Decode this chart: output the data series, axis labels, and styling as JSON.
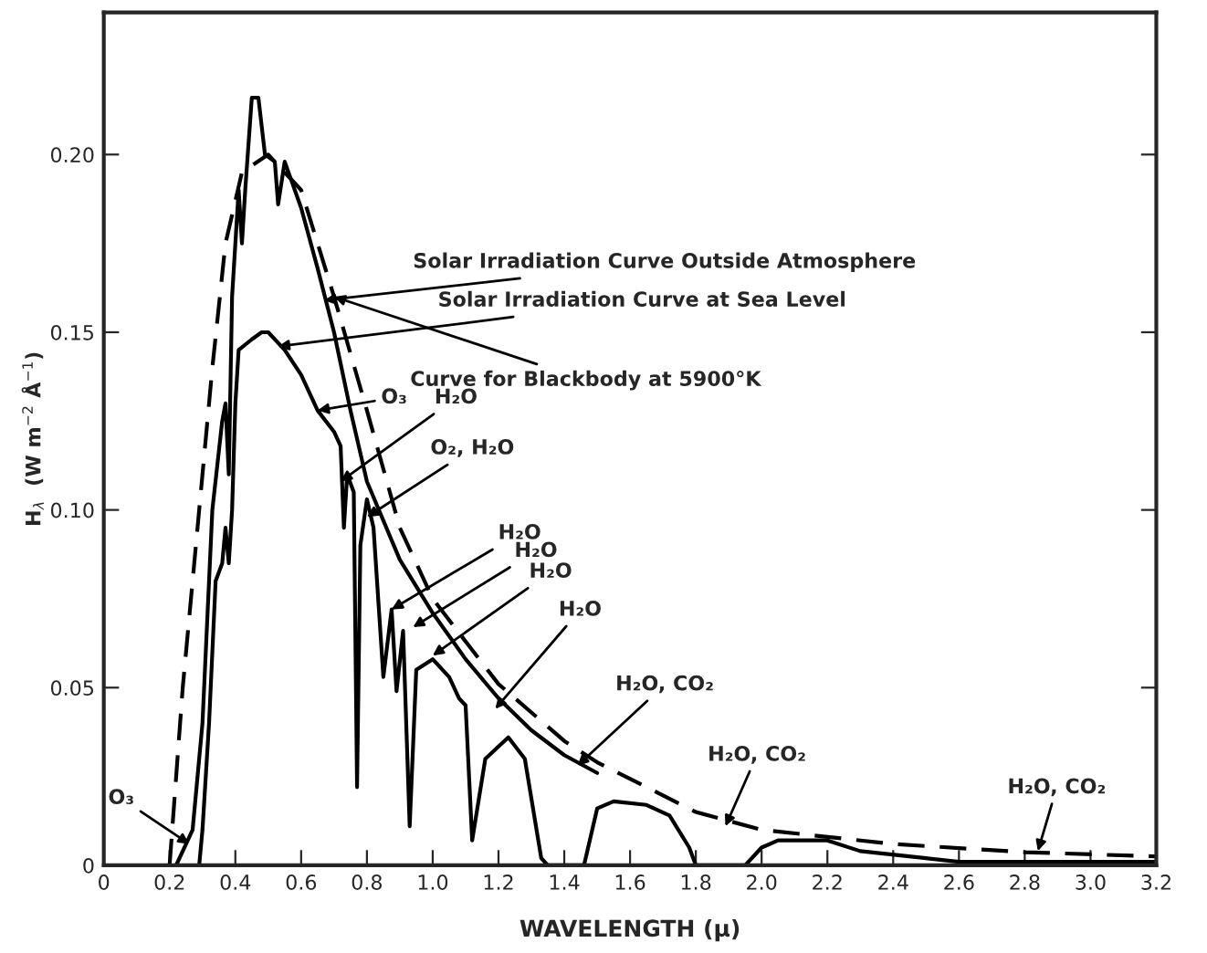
{
  "chart_data": {
    "type": "line",
    "xlabel": "WAVELENGTH (μ)",
    "ylabel": "H$_{λ}$  (W m$^{−2}$ Å$^{−1}$)",
    "xlim": [
      0,
      3.2
    ],
    "ylim": [
      0,
      0.24
    ],
    "xticks": [
      {
        "value": 0,
        "label": "0"
      },
      0.2,
      0.4,
      0.6,
      0.8,
      {
        "value": 1,
        "label": "1.0"
      },
      1.2,
      1.4,
      1.6,
      1.8,
      {
        "value": 2,
        "label": "2.0"
      },
      2.2,
      2.4,
      2.6,
      2.8,
      {
        "value": 3,
        "label": "3.0"
      },
      3.2
    ],
    "yticks": [
      {
        "value": 0,
        "label": "0"
      },
      0.05,
      {
        "value": 0.1,
        "label": "0.10"
      },
      0.15,
      {
        "value": 0.2,
        "label": "0.20"
      }
    ],
    "grid": false,
    "legend": false,
    "series": [
      {
        "color": "#000000",
        "line_style": "solid",
        "x": [
          0.22,
          0.27,
          0.3,
          0.33,
          0.36,
          0.37,
          0.38,
          0.39,
          0.41,
          0.42,
          0.43,
          0.45,
          0.47,
          0.49,
          0.52,
          0.53,
          0.55,
          0.6,
          0.65,
          0.7,
          0.75,
          0.8,
          0.9,
          1.0,
          1.1,
          1.2,
          1.3,
          1.4,
          1.5
        ],
        "values": [
          0,
          0.01,
          0.04,
          0.1,
          0.125,
          0.13,
          0.11,
          0.16,
          0.19,
          0.175,
          0.19,
          0.216,
          0.216,
          0.2,
          0.198,
          0.186,
          0.198,
          0.185,
          0.168,
          0.15,
          0.128,
          0.108,
          0.086,
          0.071,
          0.058,
          0.047,
          0.038,
          0.031,
          0.026
        ]
      },
      {
        "color": "#000000",
        "line_style": "solid",
        "x": [
          0.29,
          0.3,
          0.32,
          0.34,
          0.36,
          0.37,
          0.38,
          0.39,
          0.4,
          0.41,
          0.45,
          0.48,
          0.5,
          0.55,
          0.6,
          0.65,
          0.7,
          0.72,
          0.73,
          0.74,
          0.76,
          0.77,
          0.78,
          0.8,
          0.82,
          0.85,
          0.875,
          0.89,
          0.91,
          0.93,
          0.95,
          1.0,
          1.05,
          1.08,
          1.1,
          1.12,
          1.16,
          1.23,
          1.28,
          1.33,
          1.35,
          1.46,
          1.5,
          1.55,
          1.65,
          1.72,
          1.78,
          1.8,
          1.95,
          2.0,
          2.05,
          2.2,
          2.3,
          2.5,
          2.6,
          3.2
        ],
        "values": [
          0,
          0.01,
          0.04,
          0.08,
          0.085,
          0.095,
          0.085,
          0.1,
          0.13,
          0.145,
          0.148,
          0.15,
          0.15,
          0.145,
          0.138,
          0.128,
          0.122,
          0.118,
          0.095,
          0.11,
          0.105,
          0.022,
          0.09,
          0.103,
          0.095,
          0.053,
          0.072,
          0.049,
          0.066,
          0.011,
          0.055,
          0.058,
          0.053,
          0.047,
          0.045,
          0.007,
          0.03,
          0.036,
          0.03,
          0.002,
          0,
          0,
          0.016,
          0.018,
          0.017,
          0.014,
          0.005,
          0,
          0,
          0.005,
          0.007,
          0.007,
          0.004,
          0.002,
          0.001,
          0.001
        ]
      },
      {
        "color": "#000000",
        "line_style": "dashed",
        "x": [
          0.2,
          0.24,
          0.3,
          0.33,
          0.37,
          0.42,
          0.5,
          0.6,
          0.7,
          0.8,
          0.9,
          1.0,
          1.2,
          1.4,
          1.5,
          1.8,
          2.0,
          2.4,
          2.8,
          3.2
        ],
        "values": [
          0,
          0.05,
          0.11,
          0.14,
          0.175,
          0.195,
          0.2,
          0.19,
          0.16,
          0.128,
          0.095,
          0.075,
          0.051,
          0.035,
          0.029,
          0.015,
          0.01,
          0.006,
          0.0037,
          0.0025
        ]
      }
    ],
    "annotations": [
      {
        "text": "Solar Irradiation Curve Outside Atmosphere",
        "x": 0.67,
        "y": 0.159
      },
      {
        "text": "Solar Irradiation Curve at Sea Level",
        "x": 0.53,
        "y": 0.146
      },
      {
        "text": "Curve for Blackbody at 5900°K",
        "x": 0.7,
        "y": 0.16
      },
      {
        "text": "O₃",
        "x": 0.65,
        "y": 0.128
      },
      {
        "text": "H₂O",
        "x": 0.72,
        "y": 0.108
      },
      {
        "text": "O₂, H₂O",
        "x": 0.8,
        "y": 0.098
      },
      {
        "text": "H₂O",
        "x": 0.875,
        "y": 0.072
      },
      {
        "text": "H₂O",
        "x": 0.94,
        "y": 0.067
      },
      {
        "text": "H₂O",
        "x": 1.0,
        "y": 0.059
      },
      {
        "text": "H₂O",
        "x": 1.19,
        "y": 0.044
      },
      {
        "text": "H₂O, CO₂",
        "x": 1.44,
        "y": 0.028
      },
      {
        "text": "H₂O, CO₂",
        "x": 1.89,
        "y": 0.011
      },
      {
        "text": "H₂O, CO₂",
        "x": 2.84,
        "y": 0.004
      },
      {
        "text": "O₃",
        "x": 0.26,
        "y": 0.006
      }
    ]
  }
}
